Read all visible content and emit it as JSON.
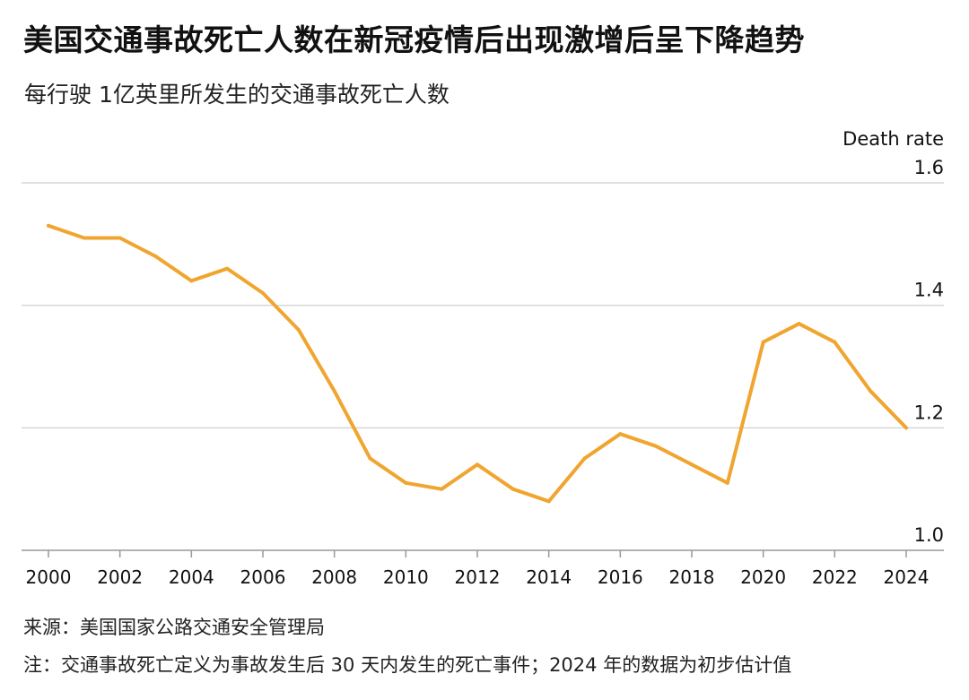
{
  "title": "美国交通事故死亡人数在新冠疫情后出现激增后呈下降趋势",
  "subtitle": "每行驶 1亿英里所发生的交通事故死亡人数",
  "footer": {
    "source": "来源：美国国家公路交通安全管理局",
    "note": "注：交通事故死亡定义为事故发生后 30 天内发生的死亡事件；2024 年的数据为初步估计值"
  },
  "colors": {
    "line": "#F0A530",
    "grid": "#cccccc",
    "axis": "#999999",
    "text": "#111111"
  },
  "chart_data": {
    "type": "line",
    "ylabel": "Death rate",
    "ylim": [
      1.0,
      1.6
    ],
    "yticks": [
      "1.0",
      "1.2",
      "1.4",
      "1.6"
    ],
    "xticks": [
      "2000",
      "2002",
      "2004",
      "2006",
      "2008",
      "2010",
      "2012",
      "2014",
      "2016",
      "2018",
      "2020",
      "2022",
      "2024"
    ],
    "grid": true,
    "x": [
      2000,
      2001,
      2002,
      2003,
      2004,
      2005,
      2006,
      2007,
      2008,
      2009,
      2010,
      2011,
      2012,
      2013,
      2014,
      2015,
      2016,
      2017,
      2018,
      2019,
      2020,
      2021,
      2022,
      2023,
      2024
    ],
    "values": [
      1.53,
      1.51,
      1.51,
      1.48,
      1.44,
      1.46,
      1.42,
      1.36,
      1.26,
      1.15,
      1.11,
      1.1,
      1.14,
      1.1,
      1.08,
      1.15,
      1.19,
      1.17,
      1.14,
      1.11,
      1.34,
      1.37,
      1.34,
      1.26,
      1.2
    ]
  }
}
